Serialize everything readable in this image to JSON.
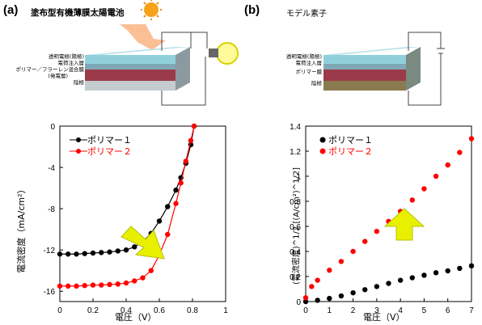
{
  "panel_a": {
    "label": "(a)",
    "title": "塗布型有機薄膜太陽電池",
    "layers": [
      "透明電極(陽極)",
      "電荷注入層",
      "ポリマー／フラーレン混合膜",
      "(発電層)",
      "陰極"
    ]
  },
  "panel_b": {
    "label": "(b)",
    "title": "モデル素子",
    "layers": [
      "透明電極(陽極)",
      "電荷注入層",
      "ポリマー膜",
      "陰極"
    ]
  },
  "colors": {
    "polymer1": "#000000",
    "polymer2": "#ff0000",
    "arrow": "#e8f000",
    "arrow_edge": "#b8c000"
  },
  "chart_data": [
    {
      "type": "scatter",
      "xlabel": "電圧（V）",
      "ylabel": "電流密度（mA/cm²）",
      "xlim": [
        0,
        1
      ],
      "ylim": [
        -17,
        0
      ],
      "xticks": [
        "0",
        "0.2",
        "0.4",
        "0.6",
        "0.8",
        "1"
      ],
      "yticks": [
        "0",
        "-4",
        "-8",
        "-12",
        "-16"
      ],
      "legend_position": "top-left",
      "series": [
        {
          "name": "ポリマー１",
          "color": "#000000",
          "x": [
            0,
            0.05,
            0.1,
            0.15,
            0.2,
            0.25,
            0.3,
            0.35,
            0.4,
            0.45,
            0.5,
            0.55,
            0.6,
            0.65,
            0.7,
            0.73,
            0.76,
            0.79,
            0.81
          ],
          "y": [
            -12.4,
            -12.4,
            -12.4,
            -12.35,
            -12.3,
            -12.25,
            -12.2,
            -12.1,
            -12.0,
            -11.7,
            -11.2,
            -10.4,
            -9.2,
            -7.8,
            -6.2,
            -5.0,
            -3.6,
            -1.8,
            0
          ]
        },
        {
          "name": "ポリマー２",
          "color": "#ff0000",
          "x": [
            0,
            0.05,
            0.1,
            0.15,
            0.2,
            0.25,
            0.3,
            0.35,
            0.4,
            0.45,
            0.5,
            0.55,
            0.6,
            0.65,
            0.7,
            0.73,
            0.76,
            0.79,
            0.81
          ],
          "y": [
            -15.5,
            -15.5,
            -15.5,
            -15.45,
            -15.4,
            -15.4,
            -15.35,
            -15.3,
            -15.2,
            -15.0,
            -14.7,
            -14.0,
            -12.5,
            -10.5,
            -7.5,
            -5.5,
            -3.4,
            -1.4,
            0
          ]
        }
      ]
    },
    {
      "type": "scatter",
      "xlabel": "電圧（V）",
      "ylabel": "(電流密度)^1/2 [(A/cm²)^1/2]",
      "xlim": [
        0,
        7
      ],
      "ylim": [
        0,
        1.4
      ],
      "xticks": [
        "0",
        "1",
        "2",
        "3",
        "4",
        "5",
        "6",
        "7"
      ],
      "yticks": [
        "0",
        "0.2",
        "0.4",
        "0.6",
        "0.8",
        "1",
        "1.2",
        "1.4"
      ],
      "legend_position": "top-left",
      "series": [
        {
          "name": "ポリマー１",
          "color": "#000000",
          "x": [
            0,
            0.5,
            1,
            1.5,
            2,
            2.5,
            3,
            3.5,
            4,
            4.5,
            5,
            5.5,
            6,
            6.5,
            7
          ],
          "y": [
            0,
            0.01,
            0.025,
            0.045,
            0.07,
            0.095,
            0.12,
            0.145,
            0.17,
            0.19,
            0.21,
            0.23,
            0.245,
            0.265,
            0.285
          ]
        },
        {
          "name": "ポリマー２",
          "color": "#ff0000",
          "x": [
            0,
            0.25,
            0.5,
            1,
            1.5,
            2,
            2.5,
            3,
            3.5,
            4,
            4.5,
            5,
            5.5,
            6,
            6.5,
            7
          ],
          "y": [
            0.03,
            0.12,
            0.17,
            0.25,
            0.32,
            0.4,
            0.48,
            0.56,
            0.64,
            0.72,
            0.81,
            0.9,
            1.0,
            1.09,
            1.19,
            1.3
          ]
        }
      ]
    }
  ],
  "annotations": {
    "a_arrow": "down-right yellow arrow (improvement of current density)",
    "b_arrow": "up yellow arrow"
  }
}
